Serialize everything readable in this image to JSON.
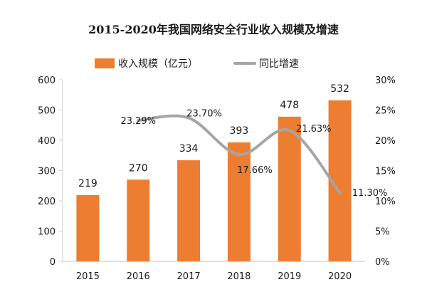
{
  "chart_data": {
    "type": "bar",
    "title": "2015-2020年我国网络安全行业收入规模及增速",
    "categories": [
      "2015",
      "2016",
      "2017",
      "2018",
      "2019",
      "2020"
    ],
    "series": [
      {
        "name": "收入规模（亿元）",
        "type": "bar",
        "axis": "left",
        "color": "#ED7D31",
        "values": [
          219,
          270,
          334,
          393,
          478,
          532
        ],
        "labels": [
          "219",
          "270",
          "334",
          "393",
          "478",
          "532"
        ]
      },
      {
        "name": "同比增速",
        "type": "line",
        "axis": "right",
        "color": "#A5A5A5",
        "values": [
          null,
          23.29,
          23.7,
          17.66,
          21.63,
          11.3
        ],
        "labels": [
          "",
          "23.29%",
          "23.70%",
          "17.66%",
          "21.63%",
          "11.30%"
        ]
      }
    ],
    "y_left": {
      "min": 0,
      "max": 600,
      "ticks": [
        "0",
        "100",
        "200",
        "300",
        "400",
        "500",
        "600"
      ]
    },
    "y_right": {
      "min": 0,
      "max": 30,
      "ticks": [
        "0%",
        "5%",
        "10%",
        "15%",
        "20%",
        "25%",
        "30%"
      ]
    },
    "legend": "top",
    "grid": false
  }
}
